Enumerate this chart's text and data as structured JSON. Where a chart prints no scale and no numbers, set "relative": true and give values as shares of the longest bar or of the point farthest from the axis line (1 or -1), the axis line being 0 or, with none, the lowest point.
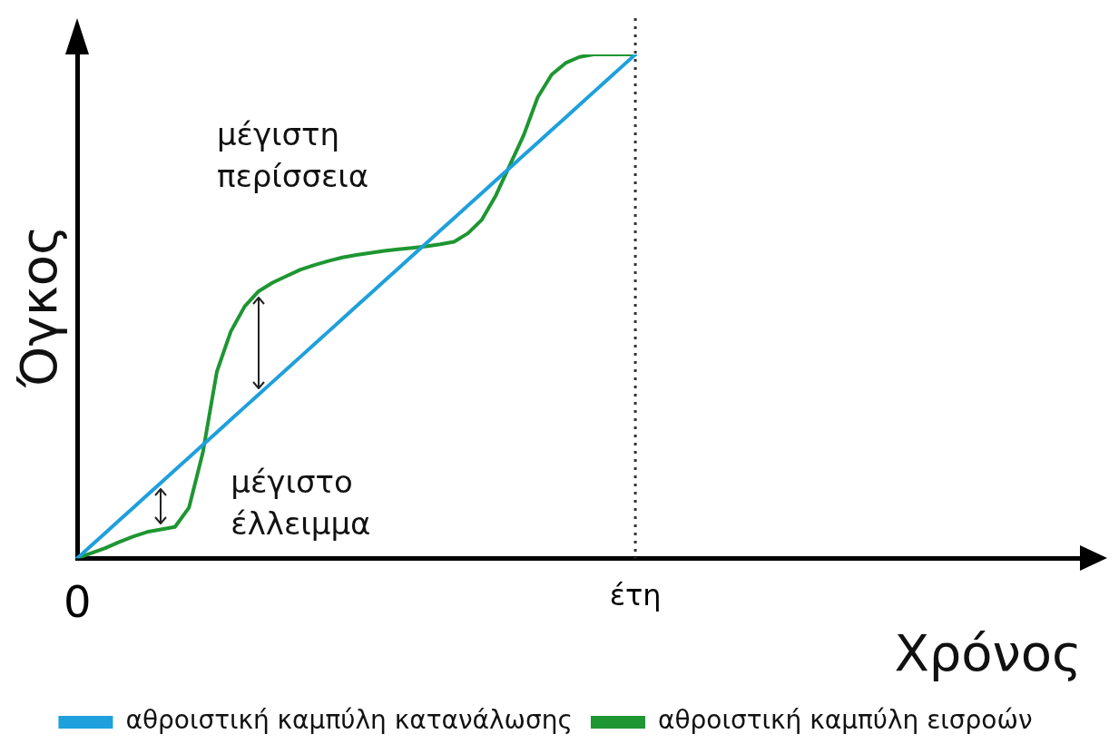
{
  "chart_data": {
    "type": "line",
    "relative": true,
    "xlabel": "Χρόνος",
    "ylabel": "Όγκος",
    "categories": [
      "0",
      null,
      null,
      null,
      null,
      null,
      null,
      null,
      null,
      null,
      null,
      null,
      null,
      null,
      null,
      null,
      null,
      null,
      null,
      null,
      null,
      null,
      null,
      null,
      null,
      null,
      null,
      null,
      null,
      null,
      null,
      null,
      null,
      null,
      null,
      null,
      null,
      null,
      null,
      null,
      "έτη",
      null,
      null,
      null,
      null,
      null,
      null,
      null,
      null,
      null,
      null,
      null,
      null,
      null,
      null,
      null,
      null,
      null,
      null,
      null,
      null,
      null,
      null,
      null,
      null,
      null,
      null,
      null,
      null,
      null,
      null,
      null,
      null
    ],
    "series": [
      {
        "name": "αθροιστική καμπύλη κατανάλωσης",
        "color": "#1ea0dc",
        "values": [
          0,
          0.025,
          0.05,
          0.075,
          0.1,
          0.125,
          0.15,
          0.175,
          0.2,
          0.225,
          0.25,
          0.275,
          0.3,
          0.325,
          0.35,
          0.375,
          0.4,
          0.425,
          0.45,
          0.475,
          0.5,
          0.525,
          0.55,
          0.575,
          0.6,
          0.625,
          0.65,
          0.675,
          0.7,
          0.725,
          0.75,
          0.775,
          0.8,
          0.825,
          0.85,
          0.875,
          0.9,
          0.925,
          0.95,
          0.975,
          1,
          null,
          null,
          null,
          null,
          null,
          null,
          null,
          null,
          null,
          null,
          null,
          null,
          null,
          null,
          null,
          null,
          null,
          null,
          null,
          null,
          null,
          null,
          null,
          null,
          null,
          null,
          null,
          null,
          null,
          null,
          null,
          null
        ]
      },
      {
        "name": "αθροιστική καμπύλη εισροών",
        "color": "#1e9632",
        "values": [
          0,
          0.01,
          0.02,
          0.032,
          0.043,
          0.052,
          0.057,
          0.062,
          0.1,
          0.21,
          0.37,
          0.45,
          0.5,
          0.53,
          0.547,
          0.56,
          0.573,
          0.582,
          0.59,
          0.597,
          0.602,
          0.606,
          0.61,
          0.613,
          0.616,
          0.619,
          0.623,
          0.628,
          0.645,
          0.672,
          0.72,
          0.78,
          0.84,
          0.915,
          0.96,
          0.983,
          0.995,
          1,
          1,
          1,
          1,
          null,
          null,
          null,
          null,
          null,
          null,
          null,
          null,
          null,
          null,
          null,
          null,
          null,
          null,
          null,
          null,
          null,
          null,
          null,
          null,
          null,
          null,
          null,
          null,
          null,
          null,
          null,
          null,
          null,
          null,
          null,
          null
        ]
      }
    ],
    "ref_lines": [
      {
        "axis": "x",
        "value": "έτη",
        "color": "#333333",
        "line_style": "dotted"
      }
    ],
    "annotations": [
      "μέγιστη\nπερίσσεια",
      "μέγιστο\nέλλειμμα"
    ],
    "legend": "bottom",
    "marker": "none",
    "line_style": "solid"
  }
}
